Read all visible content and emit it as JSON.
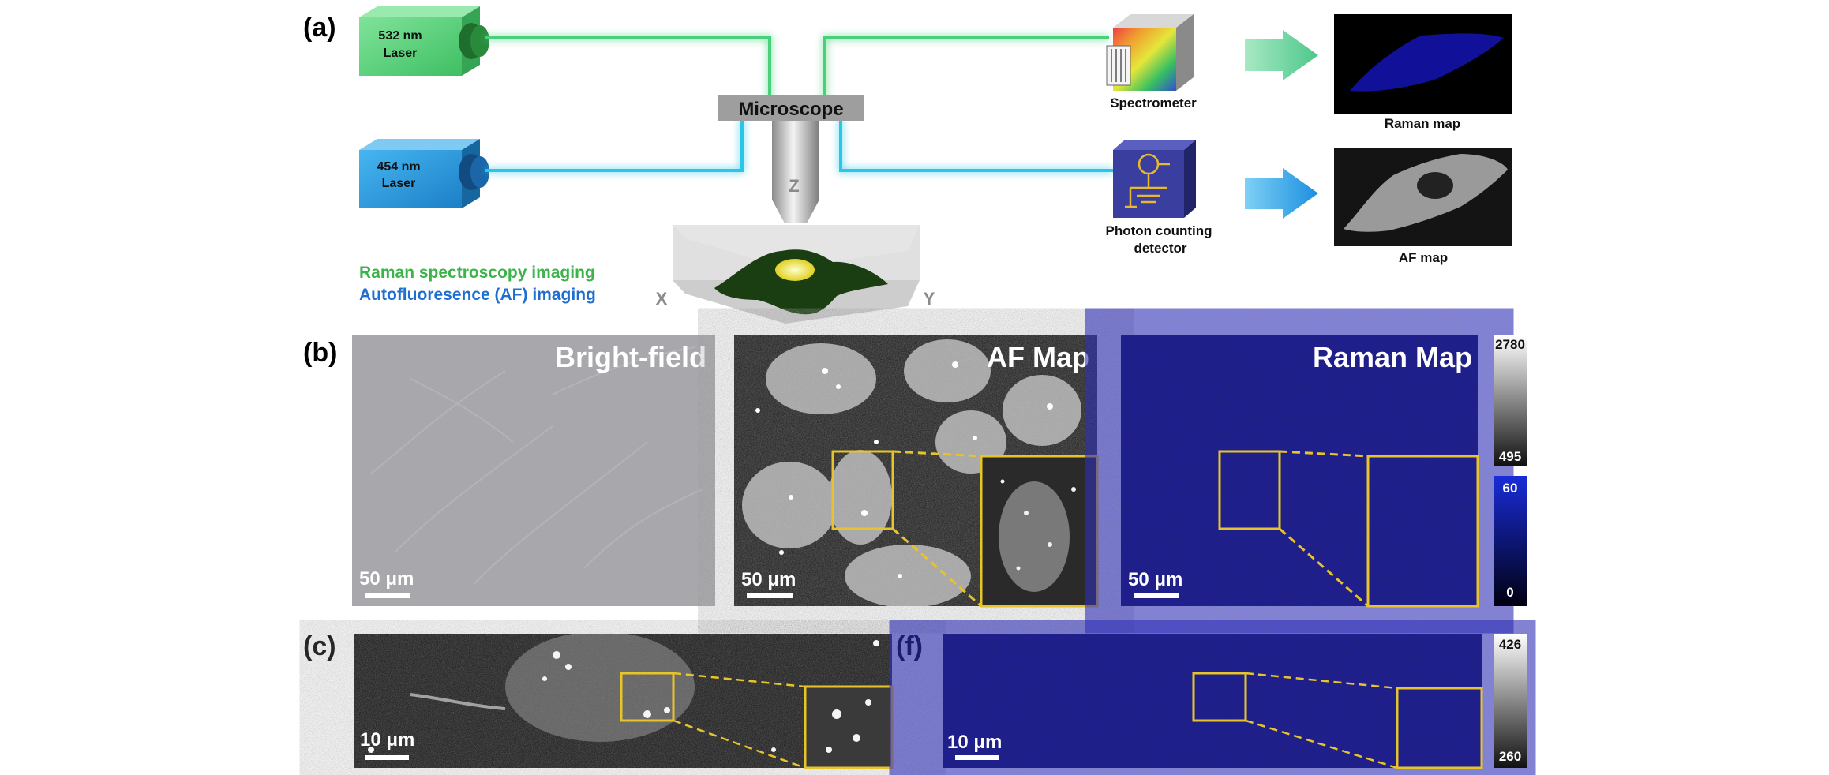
{
  "panels": {
    "a": "(a)",
    "b": "(b)",
    "c": "(c)",
    "f": "(f)"
  },
  "lasers": [
    {
      "label1": "532 nm",
      "label2": "Laser",
      "color": "#5fd17a"
    },
    {
      "label1": "454 nm",
      "label2": "Laser",
      "color": "#2a9fe0"
    }
  ],
  "microscope": {
    "label": "Microscope",
    "z": "Z",
    "x": "X",
    "y": "Y"
  },
  "detectors": {
    "spectrometer": "Spectrometer",
    "photon1": "Photon counting",
    "photon2": "detector"
  },
  "maps": {
    "raman": "Raman map",
    "af": "AF map"
  },
  "legend": {
    "raman": "Raman spectroscopy imaging",
    "af": "Autofluoresence (AF) imaging",
    "raman_color": "#3cb44b",
    "af_color": "#1f6fd0"
  },
  "row_b": {
    "brightfield": "Bright-field",
    "afmap": "AF Map",
    "ramanmap": "Raman Map",
    "scale": "50 μm",
    "cbar_gray_max": "2780",
    "cbar_gray_min": "495",
    "cbar_blue_max": "60",
    "cbar_blue_min": "0"
  },
  "row_c": {
    "scale": "10 μm",
    "cbar_max": "426",
    "cbar_min": "260"
  },
  "colors": {
    "zoom": "#e7c42a",
    "raman_bg": "#0a0a5c",
    "green_beam": "#48d07a",
    "cyan_beam": "#2bc6ea"
  }
}
